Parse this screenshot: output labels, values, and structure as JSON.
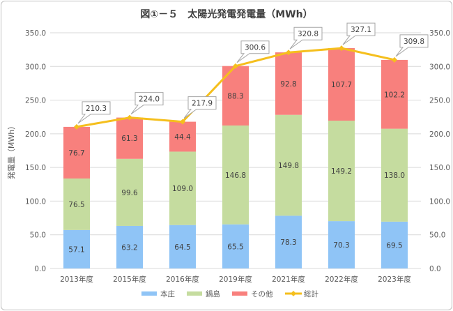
{
  "chart_data": {
    "type": "bar",
    "title": "図①－５　太陽光発電発電量（MWh）",
    "ylabel": "発電量（MWh）",
    "xlabel": "",
    "ylim": [
      0,
      350
    ],
    "y_ticks": [
      "0.0",
      "50.0",
      "100.0",
      "150.0",
      "200.0",
      "250.0",
      "300.0",
      "350.0"
    ],
    "grid": true,
    "legend_position": "bottom",
    "categories": [
      "2013年度",
      "2015年度",
      "2016年度",
      "2019年度",
      "2021年度",
      "2022年度",
      "2023年度"
    ],
    "series": [
      {
        "name": "本庄",
        "type": "bar",
        "color": "#8fc4f6",
        "values": [
          57.1,
          63.2,
          64.5,
          65.5,
          78.3,
          70.3,
          69.5
        ]
      },
      {
        "name": "鍋島",
        "type": "bar",
        "color": "#c5dc9f",
        "values": [
          76.5,
          99.6,
          109.0,
          146.8,
          149.8,
          149.2,
          138.0
        ]
      },
      {
        "name": "その他",
        "type": "bar",
        "color": "#f8807d",
        "values": [
          76.7,
          61.3,
          44.4,
          88.3,
          92.8,
          107.7,
          102.2
        ]
      },
      {
        "name": "総計",
        "type": "line",
        "color": "#f5bf1d",
        "values": [
          210.3,
          224.0,
          217.9,
          300.6,
          320.8,
          327.1,
          309.8
        ]
      }
    ]
  }
}
